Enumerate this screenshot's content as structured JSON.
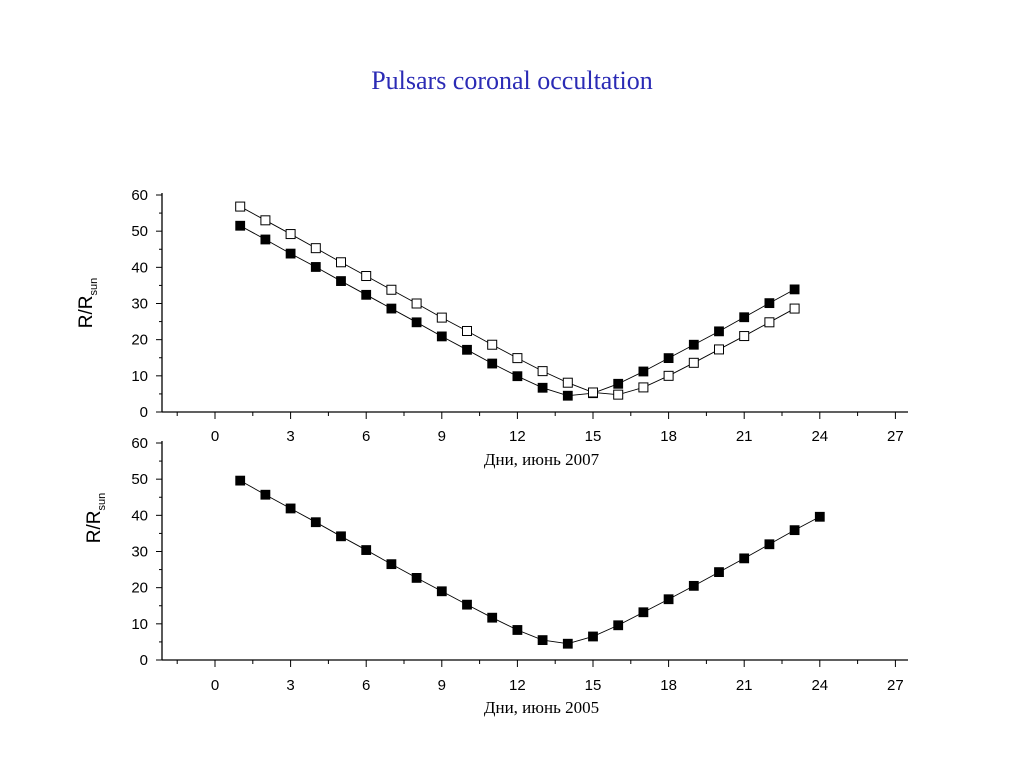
{
  "slide": {
    "title": "Pulsars coronal occultation"
  },
  "chart_data": [
    {
      "type": "scatter",
      "title": "",
      "xlabel": "Дни, июнь 2007",
      "ylabel": {
        "main": "R/R",
        "sub": "sun"
      },
      "xlim": [
        -3,
        27.5
      ],
      "ylim": [
        0,
        60
      ],
      "xticks": [
        0,
        3,
        6,
        9,
        12,
        15,
        18,
        21,
        24,
        27
      ],
      "yticks": [
        0,
        10,
        20,
        30,
        40,
        50,
        60
      ],
      "grid": false,
      "series": [
        {
          "marker": "square-filled",
          "x": [
            1,
            2,
            3,
            4,
            5,
            6,
            7,
            8,
            9,
            10,
            11,
            12,
            13,
            14,
            15,
            16,
            17,
            18,
            19,
            20,
            21,
            22,
            23
          ],
          "y": [
            51.5,
            47.7,
            43.8,
            40.1,
            36.2,
            32.4,
            28.6,
            24.8,
            20.9,
            17.2,
            13.4,
            9.9,
            6.7,
            4.5,
            5.2,
            7.8,
            11.2,
            14.9,
            18.6,
            22.3,
            26.2,
            30.1,
            33.9
          ]
        },
        {
          "marker": "square-open",
          "x": [
            1,
            2,
            3,
            4,
            5,
            6,
            7,
            8,
            9,
            10,
            11,
            12,
            13,
            14,
            15,
            16,
            17,
            18,
            19,
            20,
            21,
            22,
            23
          ],
          "y": [
            56.8,
            53.0,
            49.2,
            45.3,
            41.4,
            37.6,
            33.8,
            30.0,
            26.1,
            22.4,
            18.6,
            14.9,
            11.3,
            8.1,
            5.4,
            4.8,
            6.8,
            10.0,
            13.6,
            17.3,
            21.0,
            24.8,
            28.6
          ]
        }
      ]
    },
    {
      "type": "scatter",
      "title": "",
      "xlabel": "Дни, июнь 2005",
      "ylabel": {
        "main": "R/R",
        "sub": "sun"
      },
      "xlim": [
        -3,
        27.5
      ],
      "ylim": [
        0,
        60
      ],
      "xticks": [
        0,
        3,
        6,
        9,
        12,
        15,
        18,
        21,
        24,
        27
      ],
      "yticks": [
        0,
        10,
        20,
        30,
        40,
        50,
        60
      ],
      "grid": false,
      "series": [
        {
          "marker": "square-filled",
          "x": [
            1,
            2,
            3,
            4,
            5,
            6,
            7,
            8,
            9,
            10,
            11,
            12,
            13,
            14,
            15,
            16,
            17,
            18,
            19,
            20,
            21,
            22,
            23,
            24
          ],
          "y": [
            49.6,
            45.7,
            41.9,
            38.1,
            34.2,
            30.4,
            26.5,
            22.7,
            19.0,
            15.3,
            11.7,
            8.3,
            5.5,
            4.5,
            6.5,
            9.6,
            13.2,
            16.8,
            20.5,
            24.3,
            28.1,
            32.0,
            35.9,
            39.6
          ]
        }
      ]
    }
  ]
}
